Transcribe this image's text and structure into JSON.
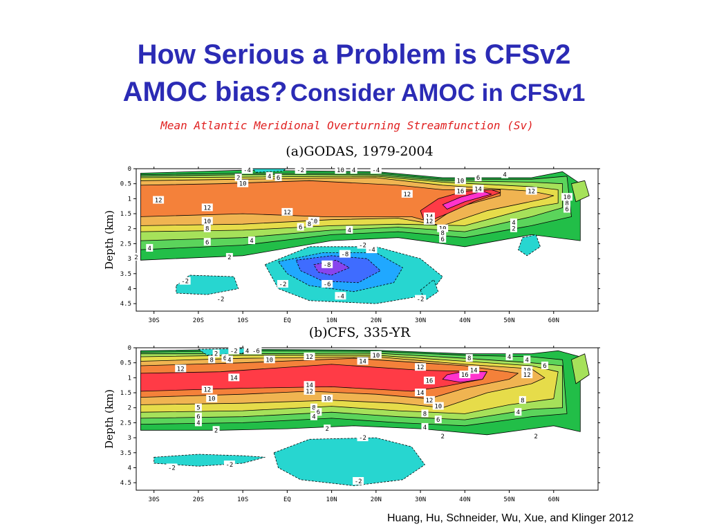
{
  "slide": {
    "title_line1": "How Serious a Problem is CFSv2",
    "title_line2_part1": "AMOC bias?",
    "title_line2_part2": "Consider AMOC in CFSv1",
    "caption": "Mean Atlantic Meridional Overturning Streamfunction (Sv)",
    "credit": "Huang, Hu, Schneider, Wu, Xue, and Klinger 2012"
  },
  "colors": {
    "title": "#2b2bb5",
    "caption": "#e02020",
    "c_gt16": "#ff33cc",
    "c_14_16": "#ff3b46",
    "c_12_14": "#f4813a",
    "c_10_12": "#f0b451",
    "c_8_10": "#e6dc4a",
    "c_6_8": "#a6e15a",
    "c_4_6": "#5bd45b",
    "c_2_4": "#22be48",
    "c_0_2": "#ffffff",
    "c_neg2": "#27d6d0",
    "c_neg4": "#20a8ff",
    "c_neg6": "#3f6cff",
    "c_neg8": "#8844ee"
  },
  "chart_data": [
    {
      "type": "heatmap",
      "panel_label": "(a)GODAS, 1979-2004",
      "ylabel": "Depth (km)",
      "x_ticks": [
        "30S",
        "20S",
        "10S",
        "EQ",
        "10N",
        "20N",
        "30N",
        "40N",
        "50N",
        "60N"
      ],
      "x_tick_values": [
        -30,
        -20,
        -10,
        0,
        10,
        20,
        30,
        40,
        50,
        60
      ],
      "y_ticks": [
        "0",
        "0.5",
        "1",
        "1.5",
        "2",
        "2.5",
        "3",
        "3.5",
        "4",
        "4.5"
      ],
      "y_tick_values": [
        0,
        0.5,
        1,
        1.5,
        2,
        2.5,
        3,
        3.5,
        4,
        4.5
      ],
      "xlim": [
        -34,
        70
      ],
      "ylim": [
        0,
        4.75
      ],
      "contour_interval": 2,
      "contour_labels": [
        {
          "lat": -9,
          "depth": 0.05,
          "text": "-4"
        },
        {
          "lat": -11,
          "depth": 0.3,
          "text": "2"
        },
        {
          "lat": -10,
          "depth": 0.5,
          "text": "10"
        },
        {
          "lat": -4,
          "depth": 0.25,
          "text": "4"
        },
        {
          "lat": -2,
          "depth": 0.3,
          "text": "6"
        },
        {
          "lat": 3,
          "depth": 0.05,
          "text": "-2"
        },
        {
          "lat": 12,
          "depth": 0.05,
          "text": "10"
        },
        {
          "lat": 15,
          "depth": 0.05,
          "text": "4"
        },
        {
          "lat": 20,
          "depth": 0.05,
          "text": "-4"
        },
        {
          "lat": 43,
          "depth": 0.3,
          "text": "6"
        },
        {
          "lat": 39,
          "depth": 0.4,
          "text": "10"
        },
        {
          "lat": 49,
          "depth": 0.2,
          "text": "4"
        },
        {
          "lat": 39,
          "depth": 0.75,
          "text": "16"
        },
        {
          "lat": 43,
          "depth": 0.68,
          "text": "14"
        },
        {
          "lat": 55,
          "depth": 0.75,
          "text": "12"
        },
        {
          "lat": 27,
          "depth": 0.85,
          "text": "12"
        },
        {
          "lat": 63,
          "depth": 0.95,
          "text": "10"
        },
        {
          "lat": 63,
          "depth": 1.15,
          "text": "8"
        },
        {
          "lat": 63,
          "depth": 1.35,
          "text": "6"
        },
        {
          "lat": -29,
          "depth": 1.05,
          "text": "12"
        },
        {
          "lat": -18,
          "depth": 1.3,
          "text": "12"
        },
        {
          "lat": -18,
          "depth": 1.75,
          "text": "10"
        },
        {
          "lat": -18,
          "depth": 2.0,
          "text": "8"
        },
        {
          "lat": -18,
          "depth": 2.45,
          "text": "6"
        },
        {
          "lat": -31,
          "depth": 2.65,
          "text": "4"
        },
        {
          "lat": -34,
          "depth": 2.95,
          "text": "2"
        },
        {
          "lat": 0,
          "depth": 1.45,
          "text": "12"
        },
        {
          "lat": 6,
          "depth": 1.75,
          "text": "10"
        },
        {
          "lat": 5,
          "depth": 1.85,
          "text": "8"
        },
        {
          "lat": 3,
          "depth": 1.95,
          "text": "6"
        },
        {
          "lat": 14,
          "depth": 2.05,
          "text": "4"
        },
        {
          "lat": 32,
          "depth": 1.6,
          "text": "14"
        },
        {
          "lat": 32,
          "depth": 1.75,
          "text": "12"
        },
        {
          "lat": 35,
          "depth": 2.0,
          "text": "10"
        },
        {
          "lat": 35,
          "depth": 2.15,
          "text": "8"
        },
        {
          "lat": 35,
          "depth": 2.35,
          "text": "6"
        },
        {
          "lat": 51,
          "depth": 1.8,
          "text": "4"
        },
        {
          "lat": 51,
          "depth": 2.0,
          "text": "2"
        },
        {
          "lat": -8,
          "depth": 2.4,
          "text": "4"
        },
        {
          "lat": -13,
          "depth": 2.95,
          "text": "2"
        },
        {
          "lat": 17,
          "depth": 2.55,
          "text": "-2"
        },
        {
          "lat": 19,
          "depth": 2.7,
          "text": "-4"
        },
        {
          "lat": 13,
          "depth": 2.85,
          "text": "-8"
        },
        {
          "lat": 9,
          "depth": 3.2,
          "text": "-8"
        },
        {
          "lat": 9,
          "depth": 3.85,
          "text": "-6"
        },
        {
          "lat": 12,
          "depth": 4.25,
          "text": "-4"
        },
        {
          "lat": -1,
          "depth": 3.85,
          "text": "-2"
        },
        {
          "lat": -23,
          "depth": 3.75,
          "text": "-2"
        },
        {
          "lat": -15,
          "depth": 4.35,
          "text": "-2"
        },
        {
          "lat": 30,
          "depth": 4.35,
          "text": "-2"
        }
      ]
    },
    {
      "type": "heatmap",
      "panel_label": "(b)CFS, 335-YR",
      "ylabel": "Depth (km)",
      "x_ticks": [
        "30S",
        "20S",
        "10S",
        "EQ",
        "10N",
        "20N",
        "30N",
        "40N",
        "50N",
        "60N"
      ],
      "x_tick_values": [
        -30,
        -20,
        -10,
        0,
        10,
        20,
        30,
        40,
        50,
        60
      ],
      "y_ticks": [
        "0",
        "0.5",
        "1",
        "1.5",
        "2",
        "2.5",
        "3",
        "3.5",
        "4",
        "4.5"
      ],
      "y_tick_values": [
        0,
        0.5,
        1,
        1.5,
        2,
        2.5,
        3,
        3.5,
        4,
        4.5
      ],
      "xlim": [
        -34,
        70
      ],
      "ylim": [
        0,
        4.75
      ],
      "contour_interval": 2,
      "contour_labels": [
        {
          "lat": -16,
          "depth": 0.2,
          "text": "2"
        },
        {
          "lat": -12,
          "depth": 0.1,
          "text": "-2"
        },
        {
          "lat": -9,
          "depth": 0.1,
          "text": "4"
        },
        {
          "lat": -7,
          "depth": 0.1,
          "text": "-6"
        },
        {
          "lat": -17,
          "depth": 0.4,
          "text": "8"
        },
        {
          "lat": -14,
          "depth": 0.35,
          "text": "6"
        },
        {
          "lat": -13,
          "depth": 0.4,
          "text": "4"
        },
        {
          "lat": -4,
          "depth": 0.4,
          "text": "10"
        },
        {
          "lat": 5,
          "depth": 0.3,
          "text": "12"
        },
        {
          "lat": 17,
          "depth": 0.45,
          "text": "14"
        },
        {
          "lat": 20,
          "depth": 0.25,
          "text": "10"
        },
        {
          "lat": 30,
          "depth": 0.65,
          "text": "12"
        },
        {
          "lat": 41,
          "depth": 0.35,
          "text": "8"
        },
        {
          "lat": 50,
          "depth": 0.3,
          "text": "4"
        },
        {
          "lat": 54,
          "depth": 0.4,
          "text": "4"
        },
        {
          "lat": 58,
          "depth": 0.6,
          "text": "6"
        },
        {
          "lat": 54,
          "depth": 0.75,
          "text": "10"
        },
        {
          "lat": 54,
          "depth": 0.9,
          "text": "12"
        },
        {
          "lat": -24,
          "depth": 0.7,
          "text": "12"
        },
        {
          "lat": -12,
          "depth": 1.0,
          "text": "14"
        },
        {
          "lat": 32,
          "depth": 1.1,
          "text": "16"
        },
        {
          "lat": 42,
          "depth": 0.75,
          "text": "14"
        },
        {
          "lat": 40,
          "depth": 0.9,
          "text": "16"
        },
        {
          "lat": 5,
          "depth": 1.25,
          "text": "14"
        },
        {
          "lat": 5,
          "depth": 1.45,
          "text": "12"
        },
        {
          "lat": 9,
          "depth": 1.7,
          "text": "10"
        },
        {
          "lat": -18,
          "depth": 1.4,
          "text": "12"
        },
        {
          "lat": -17,
          "depth": 1.7,
          "text": "10"
        },
        {
          "lat": -20,
          "depth": 2.0,
          "text": "5"
        },
        {
          "lat": -20,
          "depth": 2.3,
          "text": "6"
        },
        {
          "lat": -20,
          "depth": 2.5,
          "text": "4"
        },
        {
          "lat": 6,
          "depth": 2.0,
          "text": "8"
        },
        {
          "lat": 7,
          "depth": 2.15,
          "text": "6"
        },
        {
          "lat": 6,
          "depth": 2.3,
          "text": "4"
        },
        {
          "lat": 30,
          "depth": 1.5,
          "text": "14"
        },
        {
          "lat": 32,
          "depth": 1.75,
          "text": "12"
        },
        {
          "lat": 34,
          "depth": 1.95,
          "text": "10"
        },
        {
          "lat": 31,
          "depth": 2.2,
          "text": "8"
        },
        {
          "lat": 34,
          "depth": 2.4,
          "text": "6"
        },
        {
          "lat": 31,
          "depth": 2.65,
          "text": "4"
        },
        {
          "lat": 53,
          "depth": 1.75,
          "text": "8"
        },
        {
          "lat": 52,
          "depth": 2.15,
          "text": "4"
        },
        {
          "lat": -16,
          "depth": 2.75,
          "text": "2"
        },
        {
          "lat": 9,
          "depth": 2.7,
          "text": "2"
        },
        {
          "lat": 35,
          "depth": 2.95,
          "text": "2"
        },
        {
          "lat": 56,
          "depth": 2.95,
          "text": "2"
        },
        {
          "lat": 17,
          "depth": 3.0,
          "text": "-2"
        },
        {
          "lat": -13,
          "depth": 3.9,
          "text": "-2"
        },
        {
          "lat": -26,
          "depth": 4.0,
          "text": "-2"
        },
        {
          "lat": 16,
          "depth": 4.45,
          "text": "-2"
        }
      ]
    }
  ]
}
